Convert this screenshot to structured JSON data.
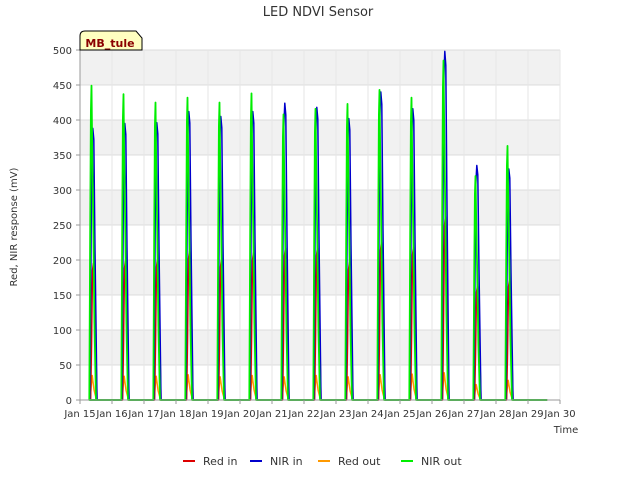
{
  "chart_data": {
    "type": "line",
    "title": "LED NDVI Sensor",
    "xlabel": "Time",
    "ylabel": "Red, NIR response (mV)",
    "ylim": [
      0,
      500
    ],
    "y_ticks": [
      0,
      50,
      100,
      150,
      200,
      250,
      300,
      350,
      400,
      450,
      500
    ],
    "xlim": [
      "Jan 15",
      "Jan 30"
    ],
    "x_ticks": [
      "Jan 15",
      "Jan 16",
      "Jan 17",
      "Jan 18",
      "Jan 19",
      "Jan 20",
      "Jan 21",
      "Jan 22",
      "Jan 23",
      "Jan 24",
      "Jan 25",
      "Jan 26",
      "Jan 27",
      "Jan 28",
      "Jan 29",
      "Jan 30"
    ],
    "grid": true,
    "legend_position": "bottom",
    "site_label": "MB_tule",
    "day_labels": [
      "Jan 16",
      "Jan 17",
      "Jan 18",
      "Jan 19",
      "Jan 20",
      "Jan 21",
      "Jan 22",
      "Jan 23",
      "Jan 24",
      "Jan 25",
      "Jan 26",
      "Jan 27",
      "Jan 28",
      "Jan 29"
    ],
    "series": [
      {
        "name": "Red in",
        "color": "#dd0000",
        "daily_peak": [
          195,
          198,
          200,
          212,
          200,
          210,
          217,
          217,
          196,
          225,
          218,
          262,
          162,
          170
        ]
      },
      {
        "name": "NIR in",
        "color": "#0000cc",
        "daily_peak": [
          388,
          395,
          396,
          412,
          405,
          412,
          424,
          418,
          402,
          440,
          416,
          498,
          335,
          330
        ]
      },
      {
        "name": "Red out",
        "color": "#ff9900",
        "daily_peak": [
          35,
          34,
          34,
          36,
          33,
          35,
          33,
          35,
          33,
          36,
          37,
          39,
          22,
          28
        ]
      },
      {
        "name": "NIR out",
        "color": "#00ee00",
        "daily_peak": [
          449,
          437,
          425,
          432,
          425,
          438,
          408,
          416,
          423,
          443,
          432,
          485,
          320,
          363
        ]
      }
    ]
  }
}
